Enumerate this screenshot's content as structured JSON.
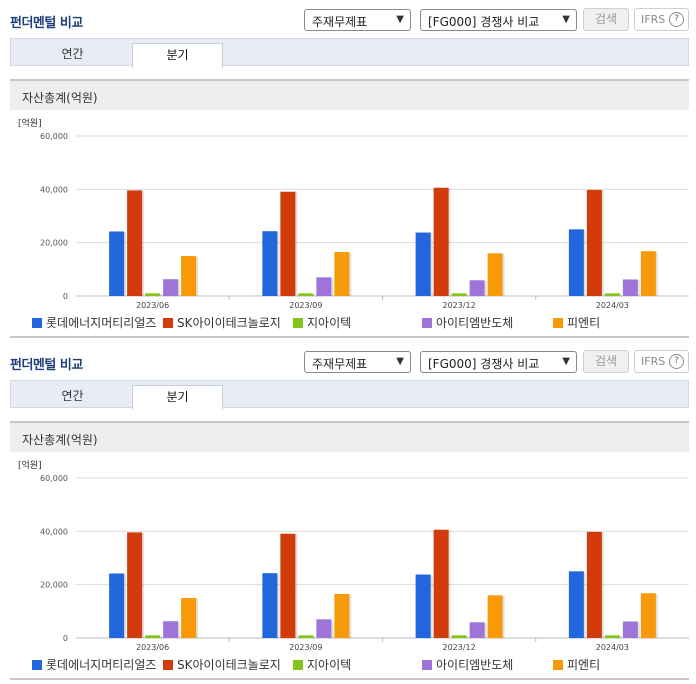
{
  "panels": [
    {
      "header": {
        "title": "펀더멘털 비교",
        "select_statement": "주재무제표",
        "select_compare": "[FG000] 경쟁사 비교",
        "search_label": "검색",
        "ifrs_label": "IFRS",
        "help_icon": "?"
      },
      "tabs": [
        {
          "label": "연간",
          "active": false
        },
        {
          "label": "분기",
          "active": true
        }
      ],
      "section_title": "자산총계(억원)"
    },
    {
      "header": {
        "title": "펀더멘털 비교",
        "select_statement": "주재무제표",
        "select_compare": "[FG000] 경쟁사 비교",
        "search_label": "검색",
        "ifrs_label": "IFRS",
        "help_icon": "?"
      },
      "tabs": [
        {
          "label": "연간",
          "active": false
        },
        {
          "label": "분기",
          "active": true
        }
      ],
      "section_title": "자산총계(억원)"
    }
  ],
  "chart_data": [
    {
      "type": "bar",
      "unit_label": "[억원]",
      "categories": [
        "2023/06",
        "2023/09",
        "2023/12",
        "2024/03"
      ],
      "y_ticks": [
        "0",
        "20,000",
        "40,000",
        "60,000"
      ],
      "ylim": [
        0,
        60000
      ],
      "grid": true,
      "legend_position": "bottom",
      "series": [
        {
          "name": "롯데에너지머티리얼즈",
          "color": "#2166dd",
          "values": [
            24200,
            24300,
            23800,
            25000
          ]
        },
        {
          "name": "SK아이이테크놀로지",
          "color": "#d23b0c",
          "values": [
            39600,
            39100,
            40600,
            39800
          ]
        },
        {
          "name": "지아이텍",
          "color": "#83c51a",
          "values": [
            1000,
            1000,
            1000,
            1000
          ]
        },
        {
          "name": "아이티엠반도체",
          "color": "#9e74d8",
          "values": [
            6300,
            7000,
            5900,
            6200
          ]
        },
        {
          "name": "피엔티",
          "color": "#f79a09",
          "values": [
            15000,
            16500,
            16000,
            16800
          ]
        }
      ]
    },
    {
      "type": "bar",
      "unit_label": "[억원]",
      "categories": [
        "2023/06",
        "2023/09",
        "2023/12",
        "2024/03"
      ],
      "y_ticks": [
        "0",
        "20,000",
        "40,000",
        "60,000"
      ],
      "ylim": [
        0,
        60000
      ],
      "grid": true,
      "legend_position": "bottom",
      "series": [
        {
          "name": "롯데에너지머티리얼즈",
          "color": "#2166dd",
          "values": [
            24200,
            24300,
            23800,
            25000
          ]
        },
        {
          "name": "SK아이이테크놀로지",
          "color": "#d23b0c",
          "values": [
            39600,
            39100,
            40600,
            39800
          ]
        },
        {
          "name": "지아이텍",
          "color": "#83c51a",
          "values": [
            1000,
            1000,
            1000,
            1000
          ]
        },
        {
          "name": "아이티엠반도체",
          "color": "#9e74d8",
          "values": [
            6300,
            7000,
            5900,
            6200
          ]
        },
        {
          "name": "피엔티",
          "color": "#f79a09",
          "values": [
            15000,
            16500,
            16000,
            16800
          ]
        }
      ]
    }
  ]
}
